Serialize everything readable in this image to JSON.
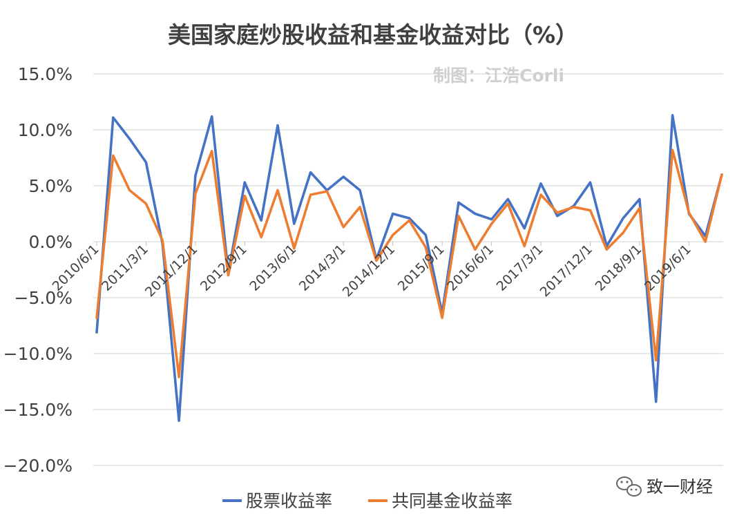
{
  "chart_data": {
    "type": "line",
    "title": "美国家庭炒股收益和基金收益对比（%）",
    "watermark": "制图：江浩Corli",
    "source_label": "致一财经",
    "source_icon": "wechat-icon",
    "ylim": [
      -20,
      15
    ],
    "yticks": [
      "15.0%",
      "10.0%",
      "5.0%",
      "0.0%",
      "−5.0%",
      "−10.0%",
      "−15.0%",
      "−20.0%"
    ],
    "xtick_labels": [
      "2010/6/1",
      "2011/3/1",
      "2011/12/1",
      "2012/9/1",
      "2013/6/1",
      "2014/3/1",
      "2014/12/1",
      "2015/9/1",
      "2016/6/1",
      "2017/3/1",
      "2017/12/1",
      "2018/9/1",
      "2019/6/1"
    ],
    "grid": true,
    "legend_position": "bottom",
    "series": [
      {
        "name": "股票收益率",
        "color": "#4472C4",
        "values": [
          -8.1,
          11.1,
          9.2,
          7.1,
          -0.2,
          -16.0,
          5.9,
          11.2,
          -2.8,
          5.3,
          1.9,
          10.4,
          1.6,
          6.2,
          4.6,
          5.8,
          4.6,
          -1.6,
          2.5,
          2.1,
          0.6,
          -6.4,
          3.5,
          2.5,
          2.0,
          3.8,
          1.2,
          5.2,
          2.3,
          3.2,
          5.3,
          -0.4,
          2.1,
          3.8,
          -14.3,
          11.3,
          2.5,
          0.5,
          6.0
        ]
      },
      {
        "name": "共同基金收益率",
        "color": "#ED7D31",
        "values": [
          -6.8,
          7.7,
          4.6,
          3.4,
          0.1,
          -12.1,
          4.3,
          8.1,
          -3.0,
          4.1,
          0.4,
          4.6,
          -0.6,
          4.2,
          4.5,
          1.3,
          3.1,
          -1.7,
          0.6,
          1.9,
          -0.5,
          -6.8,
          2.3,
          -0.7,
          1.6,
          3.4,
          -0.4,
          4.2,
          2.6,
          3.1,
          2.8,
          -0.7,
          0.8,
          3.0,
          -10.6,
          8.2,
          2.6,
          0.0,
          6.0
        ]
      }
    ]
  }
}
